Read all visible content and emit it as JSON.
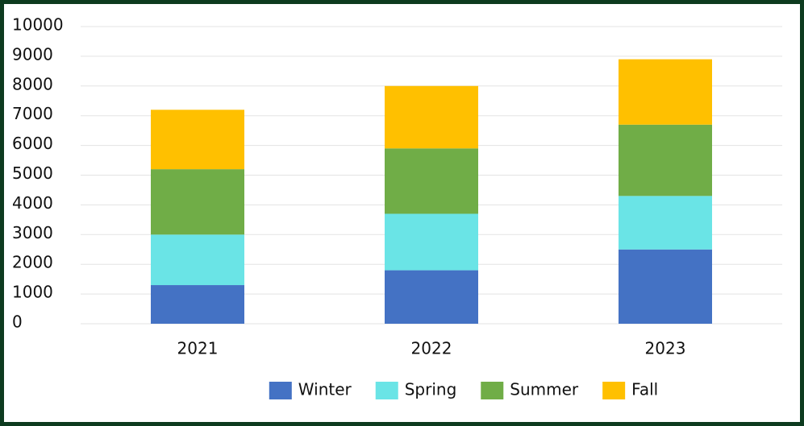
{
  "chart_data": {
    "type": "stacked_bar",
    "categories": [
      "2021",
      "2022",
      "2023"
    ],
    "series": [
      {
        "name": "Winter",
        "color": "#4472c4",
        "values": [
          1300,
          1800,
          2500
        ]
      },
      {
        "name": "Spring",
        "color": "#6ae4e6",
        "values": [
          1700,
          1900,
          1800
        ]
      },
      {
        "name": "Summer",
        "color": "#70ad47",
        "values": [
          2200,
          2200,
          2400
        ]
      },
      {
        "name": "Fall",
        "color": "#ffc000",
        "values": [
          2000,
          2100,
          2200
        ]
      }
    ],
    "ylim": [
      0,
      10000
    ],
    "yticks": [
      0,
      1000,
      2000,
      3000,
      4000,
      5000,
      6000,
      7000,
      8000,
      9000,
      10000
    ],
    "grid": true,
    "legend": "bottom"
  }
}
